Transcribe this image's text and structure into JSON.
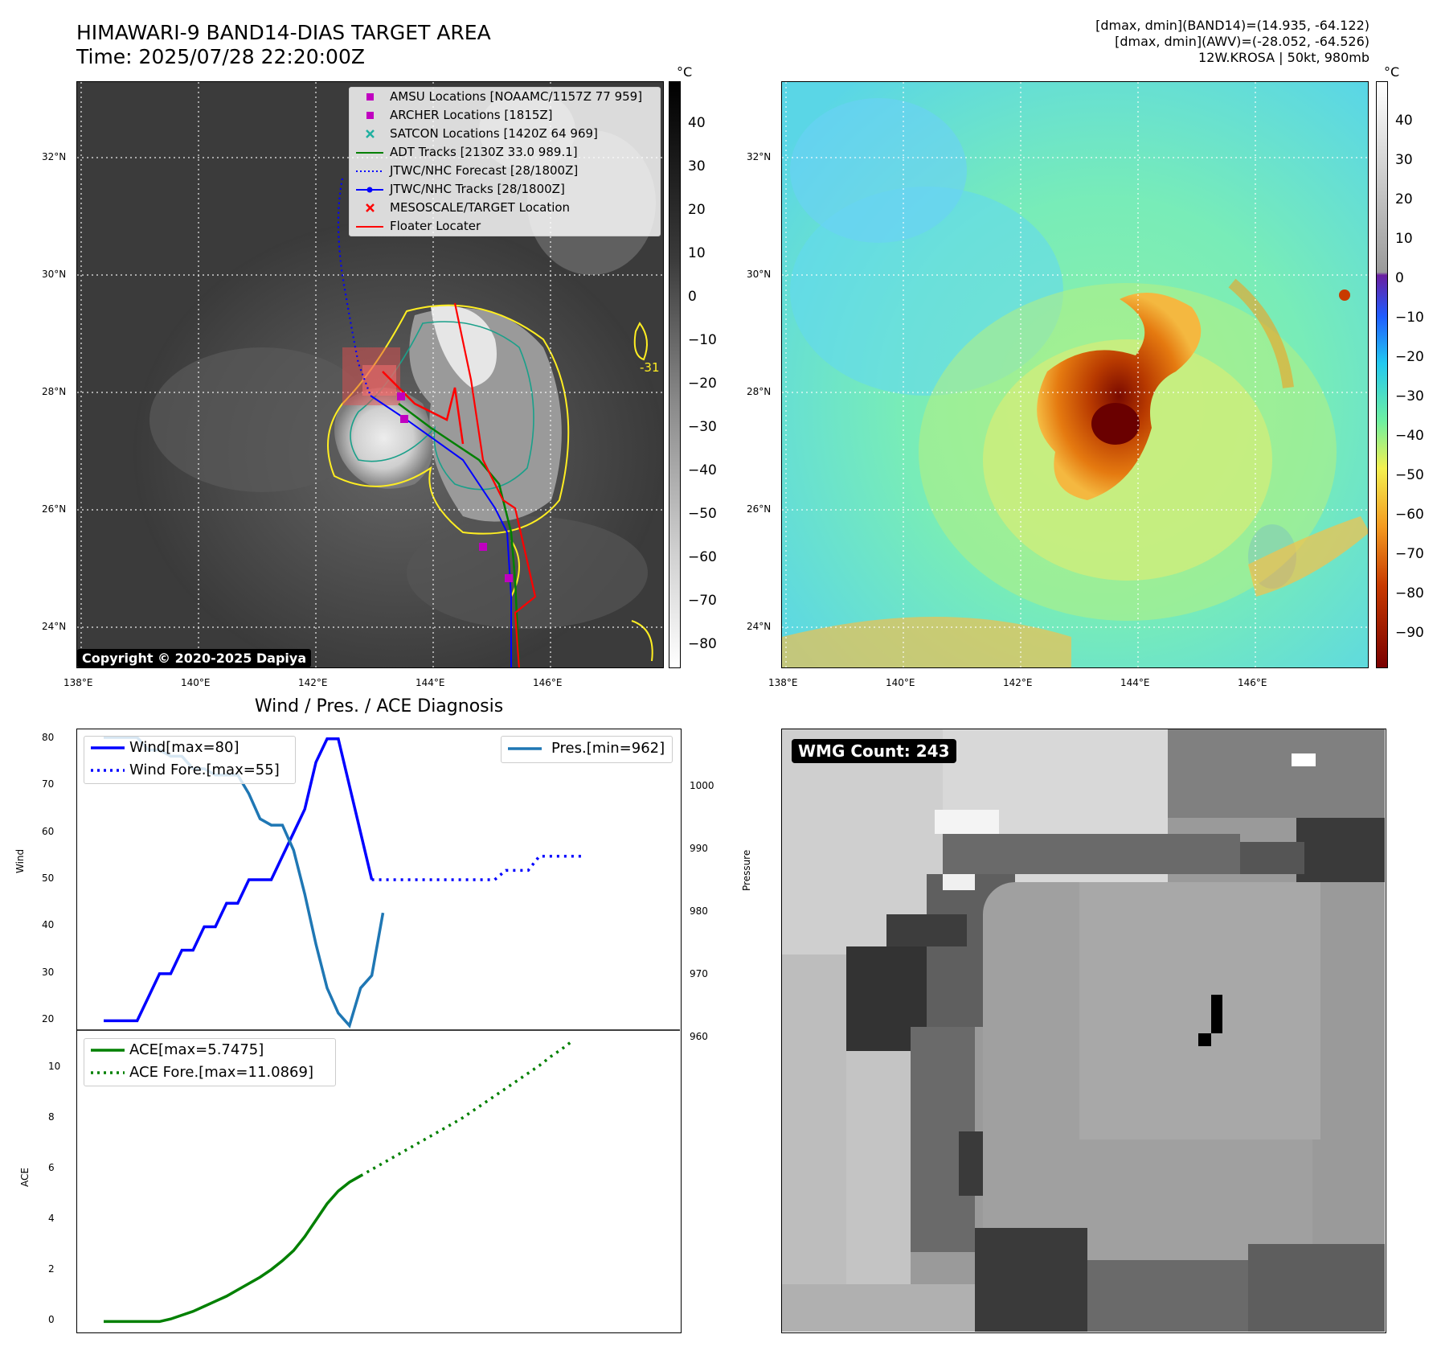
{
  "header": {
    "title_line1": "HIMAWARI-9 BAND14-DIAS TARGET AREA",
    "title_line2": "Time: 2025/07/28 22:20:00Z",
    "info_line1": "[dmax, dmin](BAND14)=(14.935, -64.122)",
    "info_line2": "[dmax, dmin](AWV)=(-28.052, -64.526)",
    "info_line3": "12W.KROSA | 50kt, 980mb"
  },
  "maps": {
    "lat_labels": [
      "32°N",
      "30°N",
      "28°N",
      "26°N",
      "24°N"
    ],
    "lon_labels": [
      "138°E",
      "140°E",
      "142°E",
      "144°E",
      "146°E"
    ],
    "contour_label": "-31",
    "copyright": "Copyright © 2020-2025 Dapiya",
    "colorbar_unit": "°C",
    "left_colorbar_ticks": [
      "40",
      "30",
      "20",
      "10",
      "0",
      "−10",
      "−20",
      "−30",
      "−40",
      "−50",
      "−60",
      "−70",
      "−80"
    ],
    "right_colorbar_ticks": [
      "40",
      "30",
      "20",
      "10",
      "0",
      "−10",
      "−20",
      "−30",
      "−40",
      "−50",
      "−60",
      "−70",
      "−80",
      "−90"
    ],
    "legend": [
      {
        "label": "AMSU Locations [NOAAMC/1157Z 77 959]",
        "marker": "square",
        "color": "#c000c0"
      },
      {
        "label": "ARCHER Locations [1815Z]",
        "marker": "square",
        "color": "#c000c0"
      },
      {
        "label": "SATCON Locations [1420Z 64 969]",
        "marker": "x",
        "color": "#20b0a0"
      },
      {
        "label": "ADT Tracks [2130Z 33.0 989.1]",
        "marker": "line",
        "color": "#008000"
      },
      {
        "label": "JTWC/NHC Forecast [28/1800Z]",
        "marker": "dotted",
        "color": "#0000ff"
      },
      {
        "label": "JTWC/NHC Tracks [28/1800Z]",
        "marker": "line-dot",
        "color": "#0000ff"
      },
      {
        "label": "MESOSCALE/TARGET Location",
        "marker": "x",
        "color": "#ff0000"
      },
      {
        "label": "Floater Locater",
        "marker": "line",
        "color": "#ff0000"
      }
    ]
  },
  "diag": {
    "title": "Wind / Pres. / ACE Diagnosis",
    "wind_ylabel": "Wind",
    "pres_ylabel": "Pressure",
    "ace_ylabel": "ACE",
    "wind_ticks": [
      "80",
      "70",
      "60",
      "50",
      "40",
      "30",
      "20"
    ],
    "pres_ticks": [
      "1000",
      "990",
      "980",
      "970",
      "960"
    ],
    "ace_ticks": [
      "10",
      "8",
      "6",
      "4",
      "2",
      "0"
    ],
    "legend_wind": "Wind[max=80]",
    "legend_wind_fore": "Wind Fore.[max=55]",
    "legend_pres": "Pres.[min=962]",
    "legend_ace": "ACE[max=5.7475]",
    "legend_ace_fore": "ACE Fore.[max=11.0869]"
  },
  "wmg": {
    "label": "WMG Count: 243"
  },
  "chart_data": [
    {
      "type": "line",
      "title": "Wind / Pres. / ACE Diagnosis",
      "ylabel": "Wind",
      "ylim": [
        18,
        82
      ],
      "series": [
        {
          "name": "Wind[max=80]",
          "color": "#0000ff",
          "values": [
            20,
            20,
            20,
            20,
            25,
            30,
            30,
            35,
            35,
            40,
            40,
            45,
            45,
            50,
            50,
            50,
            55,
            60,
            65,
            75,
            80,
            80,
            70,
            60,
            50
          ]
        },
        {
          "name": "Wind Fore.[max=55]",
          "color": "#0000ff",
          "style": "dotted",
          "offset": 24,
          "values": [
            50,
            50,
            50,
            50,
            50,
            50,
            50,
            50,
            50,
            50,
            50,
            50,
            52,
            52,
            52,
            55,
            55,
            55,
            55,
            55
          ]
        }
      ]
    },
    {
      "type": "line",
      "ylabel": "Pressure",
      "ylim": [
        960,
        1008
      ],
      "series": [
        {
          "name": "Pres.[min=962]",
          "color": "#1f77b4",
          "values": [
            1008,
            1008,
            1008,
            1008,
            1006,
            1006,
            1005,
            1005,
            1003,
            1003,
            1002,
            1002,
            1002,
            999,
            995,
            994,
            994,
            990,
            983,
            975,
            968,
            964,
            962,
            968,
            970,
            980
          ]
        }
      ]
    },
    {
      "type": "line",
      "ylabel": "ACE",
      "ylim": [
        -0.4,
        11.5
      ],
      "series": [
        {
          "name": "ACE[max=5.7475]",
          "color": "#008000",
          "values": [
            0,
            0,
            0,
            0,
            0,
            0,
            0.1,
            0.25,
            0.4,
            0.6,
            0.8,
            1.0,
            1.25,
            1.5,
            1.75,
            2.05,
            2.4,
            2.8,
            3.35,
            4.0,
            4.65,
            5.15,
            5.5,
            5.75
          ]
        },
        {
          "name": "ACE Fore.[max=11.0869]",
          "color": "#008000",
          "style": "dotted",
          "offset": 23,
          "values": [
            5.75,
            6.0,
            6.25,
            6.5,
            6.75,
            7.0,
            7.25,
            7.5,
            7.75,
            8.0,
            8.3,
            8.6,
            8.9,
            9.2,
            9.5,
            9.8,
            10.1,
            10.45,
            10.75,
            11.0869
          ]
        }
      ]
    }
  ]
}
